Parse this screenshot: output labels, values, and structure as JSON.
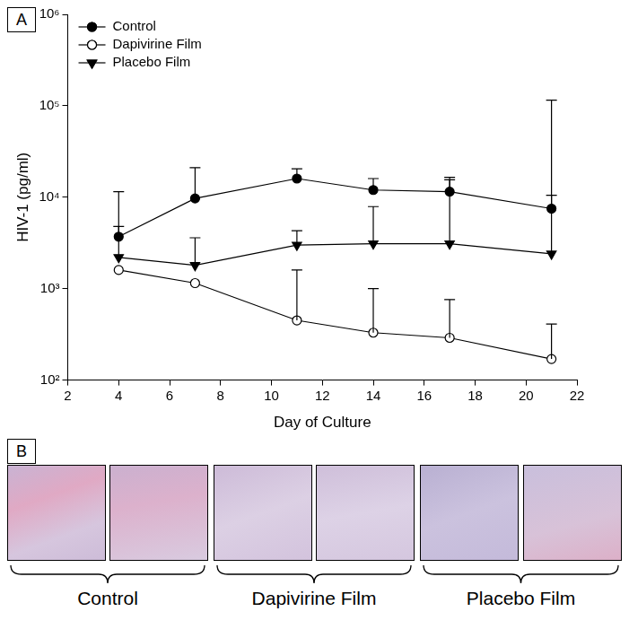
{
  "chart_data": {
    "type": "line",
    "x_label": "Day of Culture",
    "y_label": "HIV-1 (pg/ml)",
    "log": "y",
    "grid": false,
    "legend": "top-left",
    "xlim": [
      2,
      22
    ],
    "xticks": [
      2,
      4,
      6,
      8,
      10,
      12,
      14,
      16,
      18,
      20,
      22
    ],
    "ylim": [
      100,
      1000000
    ],
    "yticks": [
      {
        "value": 100,
        "label": "10²"
      },
      {
        "value": 1000,
        "label": "10³"
      },
      {
        "value": 10000,
        "label": "10⁴"
      },
      {
        "value": 100000,
        "label": "10⁵"
      },
      {
        "value": 1000000,
        "label": "10⁶"
      }
    ],
    "x": [
      4,
      7,
      11,
      14,
      17,
      21
    ],
    "series": [
      {
        "name": "Control",
        "color": "#000000",
        "marker": "circle",
        "line_style": "solid",
        "values": [
          3700,
          9700,
          16000,
          12000,
          11500,
          7500
        ],
        "error_upper": [
          11500,
          21000,
          20500,
          16000,
          16500,
          115000
        ]
      },
      {
        "name": "Dapivirine Film",
        "color": "#000000",
        "marker": "open_circle",
        "line_style": "solid",
        "values": [
          1600,
          1150,
          450,
          330,
          290,
          170
        ],
        "error_upper": [
          null,
          null,
          1600,
          1000,
          760,
          410
        ]
      },
      {
        "name": "Placebo Film",
        "color": "#000000",
        "marker": "triangle_down",
        "line_style": "solid",
        "values": [
          2200,
          1800,
          3000,
          3100,
          3100,
          2400
        ],
        "error_upper": [
          4800,
          3600,
          4300,
          7900,
          15500,
          10500
        ]
      }
    ]
  },
  "panel_labels": [
    "A",
    "B"
  ],
  "panel_b": {
    "groups": [
      "Control",
      "Dapivirine Film",
      "Placebo Film"
    ]
  }
}
